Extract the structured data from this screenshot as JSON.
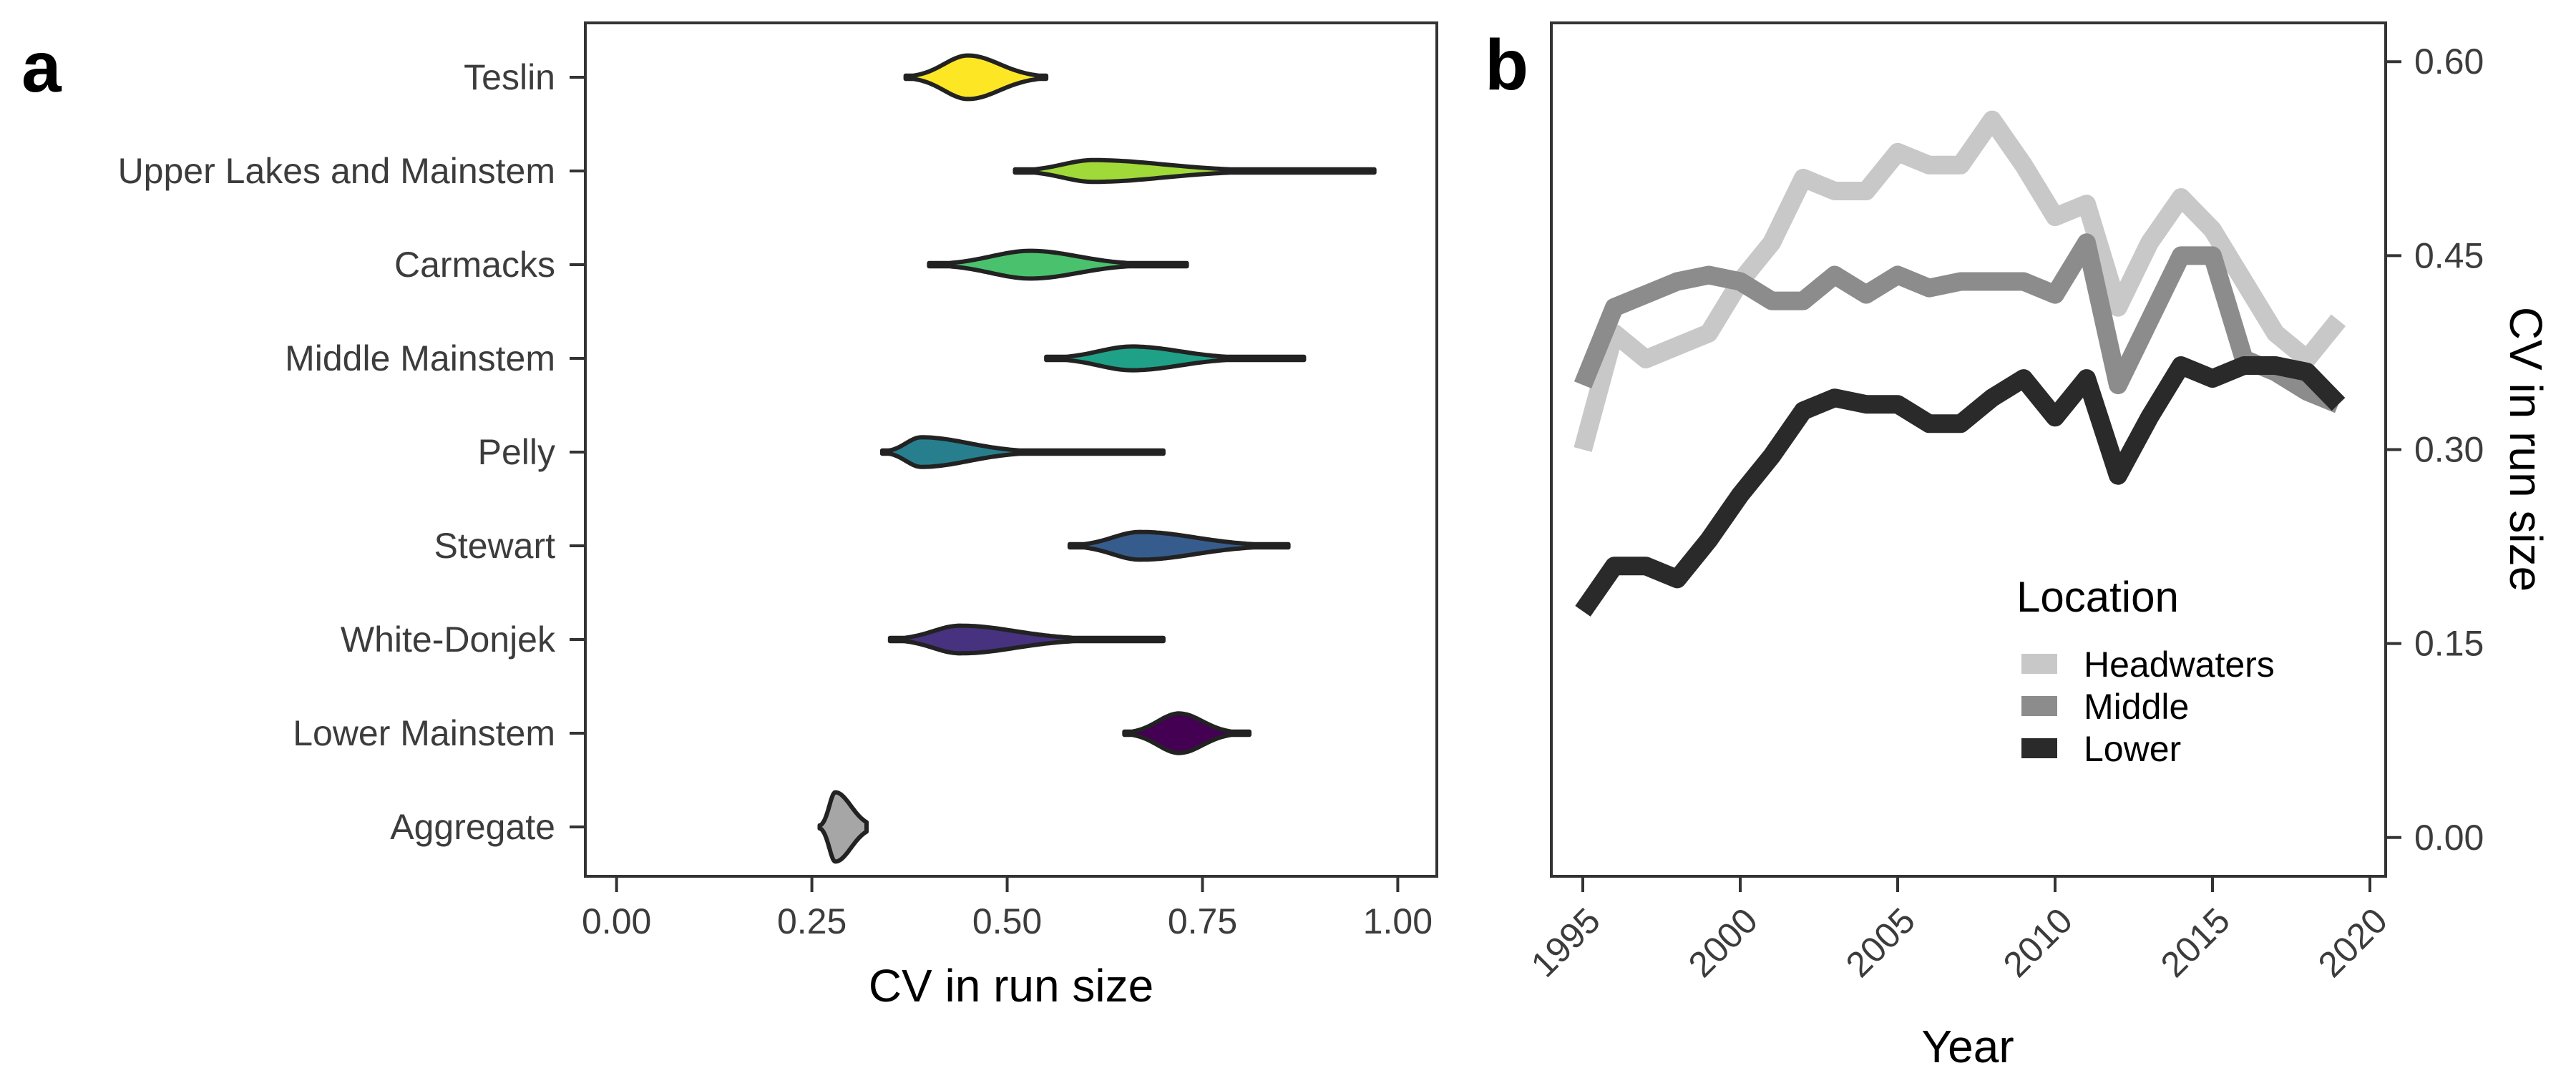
{
  "chart_data": [
    {
      "panel": "a",
      "type": "violin",
      "xlabel": "CV in run size",
      "xlim": [
        -0.04,
        1.05
      ],
      "xticks": [
        "0.00",
        "0.25",
        "0.50",
        "0.75",
        "1.00"
      ],
      "xtick_values": [
        0.0,
        0.25,
        0.5,
        0.75,
        1.0
      ],
      "categories": [
        "Teslin",
        "Upper Lakes and Mainstem",
        "Carmacks",
        "Middle Mainstem",
        "Pelly",
        "Stewart",
        "White-Donjek",
        "Lower Mainstem",
        "Aggregate"
      ],
      "series": [
        {
          "category": "Teslin",
          "color": "#fde725",
          "min": 0.37,
          "max": 0.55,
          "mode": 0.45,
          "iqr": [
            0.42,
            0.49
          ],
          "max_half_width": 0.22
        },
        {
          "category": "Upper Lakes and Mainstem",
          "color": "#a0da39",
          "min": 0.51,
          "max": 0.97,
          "mode": 0.61,
          "iqr": [
            0.56,
            0.7
          ],
          "max_half_width": 0.11
        },
        {
          "category": "Carmacks",
          "color": "#4ac16d",
          "min": 0.4,
          "max": 0.73,
          "mode": 0.53,
          "iqr": [
            0.47,
            0.59
          ],
          "max_half_width": 0.14
        },
        {
          "category": "Middle Mainstem",
          "color": "#1fa187",
          "min": 0.55,
          "max": 0.88,
          "mode": 0.66,
          "iqr": [
            0.61,
            0.72
          ],
          "max_half_width": 0.12
        },
        {
          "category": "Pelly",
          "color": "#277f8e",
          "min": 0.34,
          "max": 0.7,
          "mode": 0.39,
          "iqr": [
            0.37,
            0.45
          ],
          "max_half_width": 0.15
        },
        {
          "category": "Stewart",
          "color": "#365c8d",
          "min": 0.58,
          "max": 0.86,
          "mode": 0.67,
          "iqr": [
            0.64,
            0.74
          ],
          "max_half_width": 0.14
        },
        {
          "category": "White-Donjek",
          "color": "#46327e",
          "min": 0.35,
          "max": 0.7,
          "mode": 0.44,
          "iqr": [
            0.4,
            0.51
          ],
          "max_half_width": 0.14
        },
        {
          "category": "Lower Mainstem",
          "color": "#440154",
          "min": 0.65,
          "max": 0.81,
          "mode": 0.72,
          "iqr": [
            0.7,
            0.75
          ],
          "max_half_width": 0.2
        },
        {
          "category": "Aggregate",
          "color": "#a6a6a6",
          "min": 0.26,
          "max": 0.32,
          "mode": 0.28,
          "iqr": [
            0.27,
            0.3
          ],
          "max_half_width": 0.35
        }
      ]
    },
    {
      "panel": "b",
      "type": "line",
      "xlabel": "Year",
      "ylabel": "CV in run size",
      "xlim": [
        1994,
        2020.5
      ],
      "ylim": [
        -0.03,
        0.63
      ],
      "xticks": [
        "1995",
        "2000",
        "2005",
        "2010",
        "2015",
        "2020"
      ],
      "xtick_values": [
        1995,
        2000,
        2005,
        2010,
        2015,
        2020
      ],
      "yticks": [
        "0.00",
        "0.15",
        "0.30",
        "0.45",
        "0.60"
      ],
      "ytick_values": [
        0.0,
        0.15,
        0.3,
        0.45,
        0.6
      ],
      "y_axis_position": "right",
      "x": [
        1995,
        1996,
        1997,
        1998,
        1999,
        2000,
        2001,
        2002,
        2003,
        2004,
        2005,
        2006,
        2007,
        2008,
        2009,
        2010,
        2011,
        2012,
        2013,
        2014,
        2015,
        2016,
        2017,
        2018,
        2019
      ],
      "series": [
        {
          "name": "Headwaters",
          "color": "#c8c8c8",
          "values": [
            0.3,
            0.39,
            0.37,
            0.38,
            0.39,
            0.43,
            0.46,
            0.51,
            0.5,
            0.5,
            0.53,
            0.52,
            0.52,
            0.555,
            0.52,
            0.48,
            0.49,
            0.41,
            0.46,
            0.495,
            0.47,
            0.43,
            0.39,
            0.37,
            0.4
          ]
        },
        {
          "name": "Middle",
          "color": "#8c8c8c",
          "values": [
            0.35,
            0.41,
            0.42,
            0.43,
            0.435,
            0.43,
            0.415,
            0.415,
            0.435,
            0.42,
            0.435,
            0.425,
            0.43,
            0.43,
            0.43,
            0.42,
            0.46,
            0.35,
            0.4,
            0.45,
            0.45,
            0.37,
            0.36,
            0.345,
            0.335
          ]
        },
        {
          "name": "Lower",
          "color": "#2a2a2a",
          "values": [
            0.175,
            0.21,
            0.21,
            0.2,
            0.23,
            0.265,
            0.295,
            0.33,
            0.34,
            0.335,
            0.335,
            0.32,
            0.32,
            0.34,
            0.355,
            0.325,
            0.355,
            0.28,
            0.325,
            0.365,
            0.355,
            0.365,
            0.365,
            0.36,
            0.335
          ]
        }
      ]
    }
  ],
  "panel_a_tag": "a",
  "panel_b_tag": "b",
  "legend": {
    "title": "Location",
    "items": [
      "Headwaters",
      "Middle",
      "Lower"
    ]
  }
}
